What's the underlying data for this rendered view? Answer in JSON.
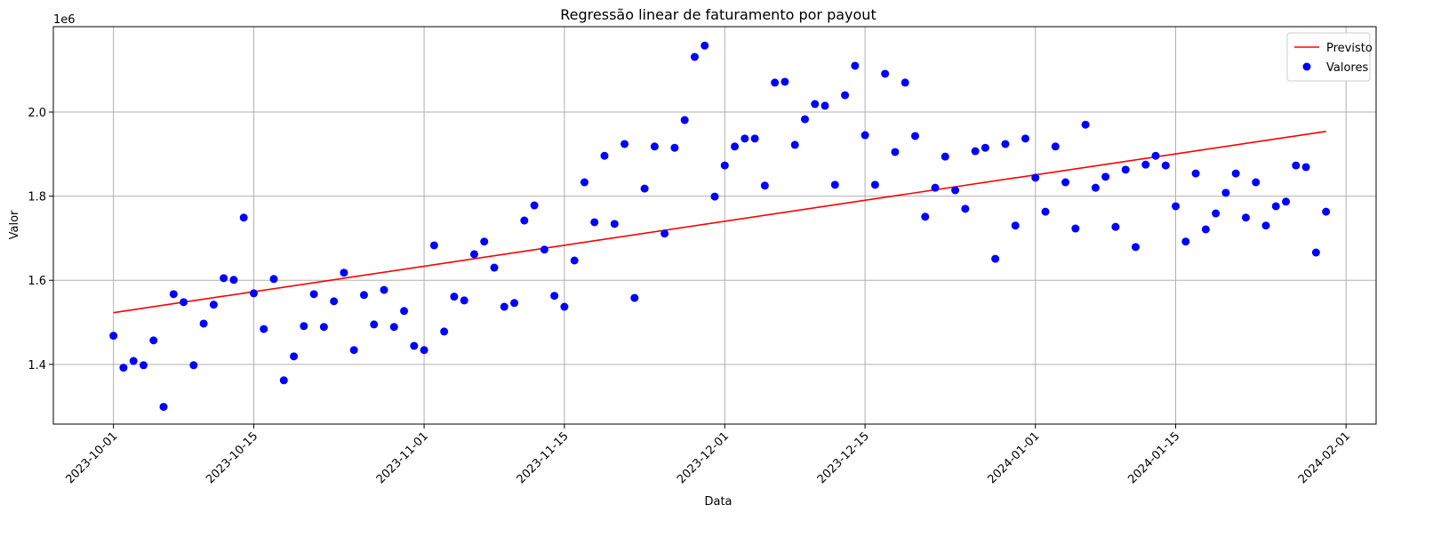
{
  "chart_data": {
    "type": "scatter",
    "title": "Regressão linear de faturamento por payout",
    "x_label": "Data",
    "y_label": "Valor",
    "y_offset_label": "1e6",
    "xlim": [
      "2023-09-25",
      "2024-02-04"
    ],
    "xticks": [
      "2023-10-01",
      "2023-10-15",
      "2023-11-01",
      "2023-11-15",
      "2023-12-01",
      "2023-12-15",
      "2024-01-01",
      "2024-01-15",
      "2024-02-01"
    ],
    "ylim": [
      1.258,
      2.203
    ],
    "yticks": [
      1.4,
      1.6,
      1.8,
      {
        "value": 2,
        "label": "2.0"
      }
    ],
    "grid": true,
    "legend": "upper right",
    "series": [
      {
        "name": "Previsto",
        "type": "line",
        "color": "#ff0000",
        "x": [
          "2023-10-01",
          "2024-01-30"
        ],
        "values": [
          1.523,
          1.954
        ]
      },
      {
        "name": "Valores",
        "type": "scatter",
        "color": "#0000ff",
        "x": [
          "2023-10-01",
          "2023-10-02",
          "2023-10-03",
          "2023-10-04",
          "2023-10-05",
          "2023-10-06",
          "2023-10-07",
          "2023-10-08",
          "2023-10-09",
          "2023-10-10",
          "2023-10-11",
          "2023-10-12",
          "2023-10-13",
          "2023-10-14",
          "2023-10-15",
          "2023-10-16",
          "2023-10-17",
          "2023-10-18",
          "2023-10-19",
          "2023-10-20",
          "2023-10-21",
          "2023-10-22",
          "2023-10-23",
          "2023-10-24",
          "2023-10-25",
          "2023-10-26",
          "2023-10-27",
          "2023-10-28",
          "2023-10-29",
          "2023-10-30",
          "2023-10-31",
          "2023-11-01",
          "2023-11-02",
          "2023-11-03",
          "2023-11-04",
          "2023-11-05",
          "2023-11-06",
          "2023-11-07",
          "2023-11-08",
          "2023-11-09",
          "2023-11-10",
          "2023-11-11",
          "2023-11-12",
          "2023-11-13",
          "2023-11-14",
          "2023-11-15",
          "2023-11-16",
          "2023-11-17",
          "2023-11-18",
          "2023-11-19",
          "2023-11-20",
          "2023-11-21",
          "2023-11-22",
          "2023-11-23",
          "2023-11-24",
          "2023-11-25",
          "2023-11-26",
          "2023-11-27",
          "2023-11-28",
          "2023-11-29",
          "2023-11-30",
          "2023-12-01",
          "2023-12-02",
          "2023-12-03",
          "2023-12-04",
          "2023-12-05",
          "2023-12-06",
          "2023-12-07",
          "2023-12-08",
          "2023-12-09",
          "2023-12-10",
          "2023-12-11",
          "2023-12-12",
          "2023-12-13",
          "2023-12-14",
          "2023-12-15",
          "2023-12-16",
          "2023-12-17",
          "2023-12-18",
          "2023-12-19",
          "2023-12-20",
          "2023-12-21",
          "2023-12-22",
          "2023-12-23",
          "2023-12-24",
          "2023-12-25",
          "2023-12-26",
          "2023-12-27",
          "2023-12-28",
          "2023-12-29",
          "2023-12-30",
          "2023-12-31",
          "2024-01-01",
          "2024-01-02",
          "2024-01-03",
          "2024-01-04",
          "2024-01-05",
          "2024-01-06",
          "2024-01-07",
          "2024-01-08",
          "2024-01-09",
          "2024-01-10",
          "2024-01-11",
          "2024-01-12",
          "2024-01-13",
          "2024-01-14",
          "2024-01-15",
          "2024-01-16",
          "2024-01-17",
          "2024-01-18",
          "2024-01-19",
          "2024-01-20",
          "2024-01-21",
          "2024-01-22",
          "2024-01-23",
          "2024-01-24",
          "2024-01-25",
          "2024-01-26",
          "2024-01-27",
          "2024-01-28",
          "2024-01-29",
          "2024-01-30"
        ],
        "values": [
          1.468,
          1.392,
          1.408,
          1.398,
          1.457,
          1.299,
          1.567,
          1.548,
          1.398,
          1.497,
          1.542,
          1.605,
          1.601,
          1.749,
          1.569,
          1.484,
          1.603,
          1.362,
          1.419,
          1.491,
          1.567,
          1.489,
          1.55,
          1.618,
          1.434,
          1.565,
          1.495,
          1.577,
          1.489,
          1.527,
          1.444,
          1.434,
          1.683,
          1.478,
          1.561,
          1.552,
          1.662,
          1.692,
          1.63,
          1.537,
          1.546,
          1.742,
          1.778,
          1.673,
          1.563,
          1.537,
          1.647,
          1.833,
          1.738,
          1.896,
          1.734,
          1.924,
          1.558,
          1.818,
          1.918,
          1.711,
          1.915,
          1.981,
          2.131,
          2.158,
          1.799,
          1.873,
          1.918,
          1.937,
          1.937,
          1.825,
          2.07,
          2.072,
          1.922,
          1.983,
          2.019,
          2.015,
          1.827,
          2.04,
          2.11,
          1.945,
          1.827,
          2.091,
          1.905,
          2.07,
          1.943,
          1.751,
          1.82,
          1.894,
          1.814,
          1.77,
          1.907,
          1.915,
          1.651,
          1.924,
          1.73,
          1.937,
          1.844,
          1.763,
          1.918,
          1.833,
          1.723,
          1.97,
          1.82,
          1.846,
          1.727,
          1.863,
          1.679,
          1.875,
          1.896,
          1.873,
          1.776,
          1.692,
          1.854,
          1.721,
          1.759,
          1.808,
          1.854,
          1.749,
          1.833,
          1.73,
          1.776,
          1.787,
          1.873,
          1.869,
          1.666,
          1.763
        ]
      }
    ]
  }
}
